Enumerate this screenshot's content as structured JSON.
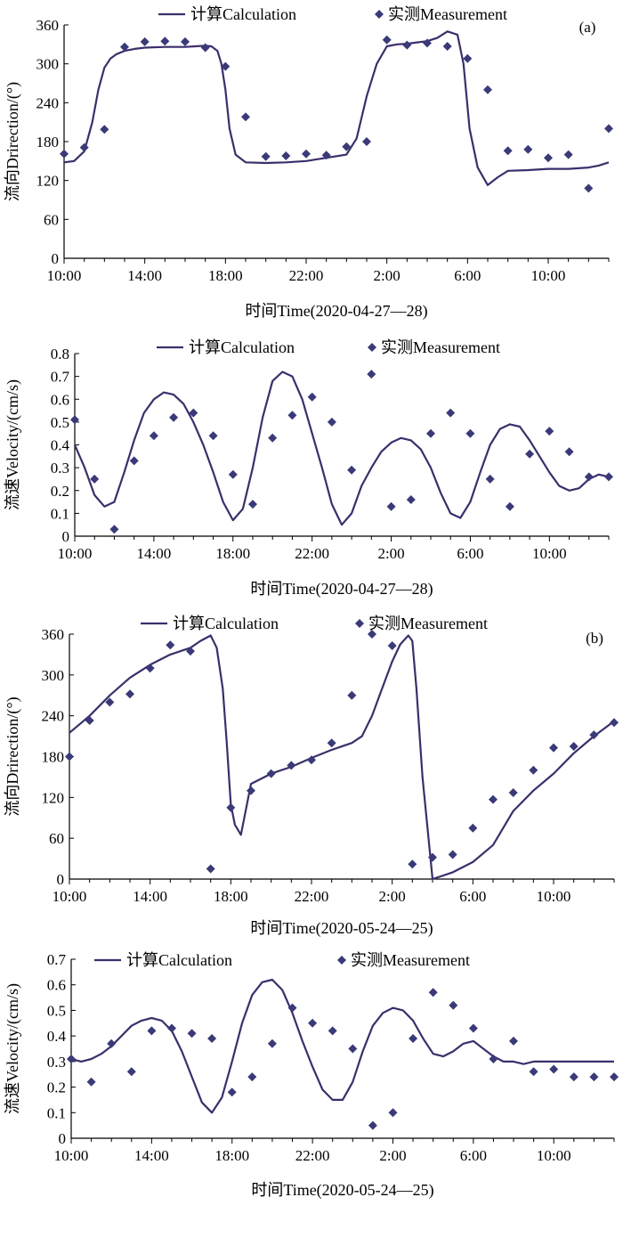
{
  "chart_data": [
    {
      "panel": "a",
      "type": "line",
      "panel_label": "(a)",
      "ylabel": "流向Drirection/(°)",
      "xlabel": "时间Time(2020-04-27—28)",
      "legend": [
        "计算Calculation",
        "实测Measurement"
      ],
      "legend_position": "top",
      "ylim": [
        0,
        360
      ],
      "yticks": [
        "0",
        "60",
        "120",
        "180",
        "240",
        "300",
        "360"
      ],
      "xlim": [
        0,
        27
      ],
      "xticks": [
        "10:00",
        "14:00",
        "18:00",
        "22:00",
        "2:00",
        "6:00",
        "10:00"
      ],
      "grid": false,
      "series": [
        {
          "name": "计算Calculation",
          "style": "line",
          "x": [
            0,
            0.5,
            1,
            1.4,
            1.7,
            2,
            2.3,
            2.6,
            3,
            3.5,
            4,
            5,
            6,
            6.5,
            7,
            7.3,
            7.6,
            7.8,
            8,
            8.2,
            8.5,
            9,
            10,
            11,
            12,
            13,
            14,
            14.5,
            15,
            15.5,
            16,
            16.5,
            17,
            17.5,
            18,
            18.5,
            19,
            19.5,
            19.8,
            20.1,
            20.5,
            21,
            21.5,
            22,
            23,
            24,
            25,
            26,
            26.5,
            27
          ],
          "y": [
            148,
            150,
            165,
            210,
            260,
            294,
            308,
            315,
            320,
            323,
            325,
            326,
            326,
            327,
            328,
            327,
            320,
            300,
            260,
            200,
            160,
            148,
            147,
            148,
            150,
            155,
            160,
            185,
            250,
            300,
            327,
            330,
            331,
            333,
            335,
            340,
            350,
            345,
            300,
            200,
            140,
            113,
            125,
            135,
            136,
            138,
            138,
            140,
            143,
            148
          ]
        },
        {
          "name": "实测Measurement",
          "style": "marker",
          "x": [
            0,
            1,
            2,
            3,
            4,
            5,
            6,
            7,
            8,
            9,
            10,
            11,
            12,
            13,
            14,
            15,
            16,
            17,
            18,
            19,
            20,
            21,
            22,
            23,
            24,
            25,
            26,
            27
          ],
          "y": [
            161,
            171,
            199,
            326,
            334,
            335,
            334,
            325,
            296,
            218,
            157,
            158,
            161,
            159,
            172,
            180,
            337,
            329,
            332,
            327,
            308,
            260,
            166,
            168,
            155,
            160,
            108,
            200
          ]
        }
      ]
    },
    {
      "panel": "a-velocity",
      "type": "line",
      "ylabel": "流速Velocity/(cm/s)",
      "xlabel": "时间Time(2020-04-27—28)",
      "legend": [
        "计算Calculation",
        "实测Measurement"
      ],
      "legend_position": "top",
      "ylim": [
        0,
        0.8
      ],
      "yticks": [
        "0",
        "0.1",
        "0.2",
        "0.3",
        "0.4",
        "0.5",
        "0.6",
        "0.7",
        "0.8"
      ],
      "xlim": [
        0,
        27
      ],
      "xticks": [
        "10:00",
        "14:00",
        "18:00",
        "22:00",
        "2:00",
        "6:00",
        "10:00"
      ],
      "grid": false,
      "series": [
        {
          "name": "计算Calculation",
          "style": "line",
          "x": [
            0,
            0.5,
            1,
            1.5,
            2,
            2.5,
            3,
            3.5,
            4,
            4.5,
            5,
            5.5,
            6,
            6.5,
            7,
            7.5,
            8,
            8.5,
            9,
            9.5,
            10,
            10.5,
            11,
            11.5,
            12,
            12.5,
            13,
            13.5,
            14,
            14.5,
            15,
            15.5,
            16,
            16.5,
            17,
            17.5,
            18,
            18.5,
            19,
            19.5,
            20,
            20.5,
            21,
            21.5,
            22,
            22.5,
            23,
            23.5,
            24,
            24.5,
            25,
            25.5,
            26,
            26.5,
            27
          ],
          "y": [
            0.4,
            0.3,
            0.18,
            0.13,
            0.15,
            0.28,
            0.42,
            0.54,
            0.6,
            0.63,
            0.62,
            0.58,
            0.5,
            0.4,
            0.28,
            0.15,
            0.07,
            0.12,
            0.3,
            0.52,
            0.68,
            0.72,
            0.7,
            0.6,
            0.45,
            0.3,
            0.14,
            0.05,
            0.1,
            0.22,
            0.3,
            0.37,
            0.41,
            0.43,
            0.42,
            0.38,
            0.3,
            0.19,
            0.1,
            0.08,
            0.15,
            0.28,
            0.4,
            0.47,
            0.49,
            0.48,
            0.42,
            0.35,
            0.28,
            0.22,
            0.2,
            0.21,
            0.25,
            0.27,
            0.26
          ]
        },
        {
          "name": "实测Measurement",
          "style": "marker",
          "x": [
            0,
            1,
            2,
            3,
            4,
            5,
            6,
            7,
            8,
            9,
            10,
            11,
            12,
            13,
            14,
            15,
            16,
            17,
            18,
            19,
            20,
            21,
            22,
            23,
            24,
            25,
            26,
            27
          ],
          "y": [
            0.51,
            0.25,
            0.03,
            0.33,
            0.44,
            0.52,
            0.54,
            0.44,
            0.27,
            0.14,
            0.43,
            0.53,
            0.61,
            0.5,
            0.29,
            0.71,
            0.13,
            0.16,
            0.45,
            0.54,
            0.45,
            0.25,
            0.13,
            0.36,
            0.46,
            0.37,
            0.26,
            0.26
          ]
        }
      ]
    },
    {
      "panel": "b",
      "type": "line",
      "panel_label": "(b)",
      "ylabel": "流向Drirection/(°)",
      "xlabel": "时间Time(2020-05-24—25)",
      "legend": [
        "计算Calculation",
        "实测Measurement"
      ],
      "legend_position": "top",
      "ylim": [
        0,
        360
      ],
      "yticks": [
        "0",
        "60",
        "120",
        "180",
        "240",
        "300",
        "360"
      ],
      "xlim": [
        0,
        27
      ],
      "xticks": [
        "10:00",
        "14:00",
        "18:00",
        "22:00",
        "2:00",
        "6:00",
        "10:00"
      ],
      "grid": false,
      "series": [
        {
          "name": "计算Calculation",
          "style": "line",
          "x": [
            0,
            1,
            2,
            3,
            4,
            5,
            6,
            6.5,
            7,
            7.3,
            7.6,
            7.8,
            8,
            8.2,
            8.5,
            9,
            10,
            11,
            12,
            13,
            14,
            14.5,
            15,
            15.5,
            16,
            16.4,
            16.8,
            17,
            17.2,
            17.5,
            18,
            19,
            20,
            21,
            22,
            23,
            24,
            25,
            26,
            27
          ],
          "y": [
            215,
            240,
            270,
            296,
            315,
            330,
            340,
            350,
            358,
            340,
            280,
            200,
            110,
            80,
            65,
            140,
            155,
            165,
            178,
            190,
            200,
            210,
            240,
            280,
            320,
            345,
            358,
            350,
            280,
            150,
            0,
            10,
            25,
            50,
            100,
            130,
            155,
            185,
            210,
            232
          ]
        },
        {
          "name": "实测Measurement",
          "style": "marker",
          "x": [
            0,
            1,
            2,
            3,
            4,
            5,
            6,
            7,
            8,
            9,
            10,
            11,
            12,
            13,
            14,
            15,
            16,
            17,
            18,
            19,
            20,
            21,
            22,
            23,
            24,
            25,
            26,
            27
          ],
          "y": [
            180,
            233,
            260,
            272,
            310,
            344,
            335,
            15,
            105,
            130,
            155,
            167,
            175,
            200,
            270,
            360,
            343,
            22,
            32,
            36,
            75,
            117,
            127,
            160,
            193,
            195,
            212,
            230
          ]
        }
      ]
    },
    {
      "panel": "b-velocity",
      "type": "line",
      "ylabel": "流速Velocity/(cm/s)",
      "xlabel": "时间Time(2020-05-24—25)",
      "legend": [
        "计算Calculation",
        "实测Measurement"
      ],
      "legend_position": "top",
      "ylim": [
        0,
        0.7
      ],
      "yticks": [
        "0",
        "0.1",
        "0.2",
        "0.3",
        "0.4",
        "0.5",
        "0.6",
        "0.7"
      ],
      "xlim": [
        0,
        27
      ],
      "xticks": [
        "10:00",
        "14:00",
        "18:00",
        "22:00",
        "2:00",
        "6:00",
        "10:00"
      ],
      "grid": false,
      "series": [
        {
          "name": "计算Calculation",
          "style": "line",
          "x": [
            0,
            0.5,
            1,
            1.5,
            2,
            2.5,
            3,
            3.5,
            4,
            4.5,
            5,
            5.5,
            6,
            6.5,
            7,
            7.5,
            8,
            8.5,
            9,
            9.5,
            10,
            10.5,
            11,
            11.5,
            12,
            12.5,
            13,
            13.5,
            14,
            14.5,
            15,
            15.5,
            16,
            16.5,
            17,
            17.5,
            18,
            18.5,
            19,
            19.5,
            20,
            20.5,
            21,
            21.5,
            22,
            22.5,
            23,
            23.5,
            24,
            24.5,
            25,
            25.5,
            26,
            26.5,
            27
          ],
          "y": [
            0.31,
            0.3,
            0.31,
            0.33,
            0.36,
            0.4,
            0.44,
            0.46,
            0.47,
            0.46,
            0.42,
            0.34,
            0.24,
            0.14,
            0.1,
            0.16,
            0.3,
            0.45,
            0.56,
            0.61,
            0.62,
            0.58,
            0.49,
            0.38,
            0.28,
            0.19,
            0.15,
            0.15,
            0.22,
            0.34,
            0.44,
            0.49,
            0.51,
            0.5,
            0.46,
            0.39,
            0.33,
            0.32,
            0.34,
            0.37,
            0.38,
            0.35,
            0.32,
            0.3,
            0.3,
            0.29,
            0.3,
            0.3,
            0.3,
            0.3,
            0.3,
            0.3,
            0.3,
            0.3,
            0.3
          ]
        },
        {
          "name": "实测Measurement",
          "style": "marker",
          "x": [
            0,
            1,
            2,
            3,
            4,
            5,
            6,
            7,
            8,
            9,
            10,
            11,
            12,
            13,
            14,
            15,
            16,
            17,
            18,
            19,
            20,
            21,
            22,
            23,
            24,
            25,
            26,
            27
          ],
          "y": [
            0.31,
            0.22,
            0.37,
            0.26,
            0.42,
            0.43,
            0.41,
            0.39,
            0.18,
            0.24,
            0.37,
            0.51,
            0.45,
            0.42,
            0.35,
            0.05,
            0.1,
            0.39,
            0.57,
            0.52,
            0.43,
            0.31,
            0.38,
            0.26,
            0.27,
            0.24,
            0.24,
            0.24
          ]
        }
      ]
    }
  ],
  "colors": {
    "line": "#3a2f6b",
    "marker": "#3a3a78",
    "axis": "#000000"
  }
}
